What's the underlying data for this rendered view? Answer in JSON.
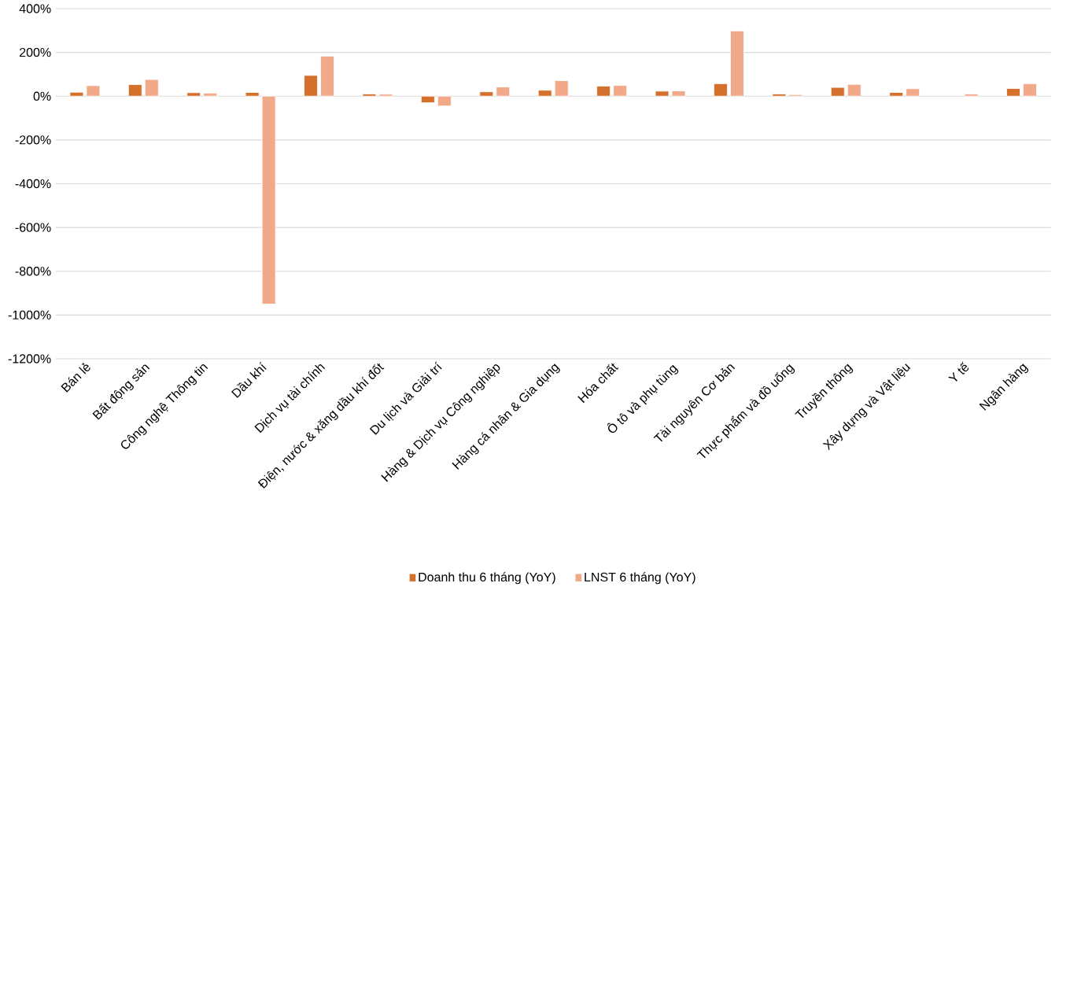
{
  "chart_data": {
    "type": "bar",
    "categories": [
      "Bán lẻ",
      "Bất động sản",
      "Công nghệ Thông tin",
      "Dầu khí",
      "Dịch vụ tài chính",
      "Điện, nước & xăng dầu khí đốt",
      "Du lịch và Giải trí",
      "Hàng & Dịch vụ Công nghiệp",
      "Hàng cá nhân & Gia dụng",
      "Hóa chất",
      "Ô tô và phụ tùng",
      "Tài nguyên Cơ bản",
      "Thực phẩm và đồ uống",
      "Truyền thông",
      "Xây dựng và Vật liệu",
      "Y tế",
      "Ngân hàng"
    ],
    "series": [
      {
        "name": "Doanh thu 6 tháng (YoY)",
        "color": "#d4702b",
        "values": [
          18,
          53,
          16,
          17,
          95,
          10,
          -30,
          20,
          27,
          46,
          23,
          57,
          10,
          40,
          17,
          null,
          35
        ]
      },
      {
        "name": "LNST 6 tháng (YoY)",
        "color": "#f1a98a",
        "values": [
          48,
          76,
          14,
          -950,
          183,
          9,
          -45,
          42,
          71,
          49,
          24,
          298,
          7,
          54,
          34,
          10,
          57
        ]
      }
    ],
    "ylim": [
      -1200,
      400
    ],
    "yticks": [
      {
        "value": -1200,
        "label": "-1200%"
      },
      {
        "value": -1000,
        "label": "-1000%"
      },
      {
        "value": -800,
        "label": "-800%"
      },
      {
        "value": -600,
        "label": "-600%"
      },
      {
        "value": -400,
        "label": "-400%"
      },
      {
        "value": -200,
        "label": "-200%"
      },
      {
        "value": 0,
        "label": "0%"
      },
      {
        "value": 200,
        "label": "200%"
      },
      {
        "value": 400,
        "label": "400%"
      }
    ],
    "grid": "y",
    "legend": "bottom"
  }
}
